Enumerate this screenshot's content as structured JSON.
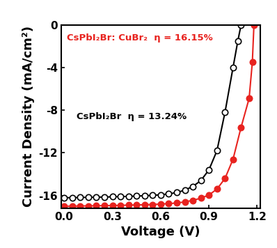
{
  "chart_data": {
    "type": "line",
    "x_label": "Voltage (V)",
    "y_label": "Current Density (mA/cm²)",
    "xlim": [
      -0.02,
      1.22
    ],
    "ylim": [
      -17.2,
      0
    ],
    "xticks": [
      0.0,
      0.3,
      0.6,
      0.9,
      1.2
    ],
    "yticks": [
      0,
      -4,
      -8,
      -12,
      -16
    ],
    "grid": false,
    "annotations": [
      {
        "text": "CsPbI₂Br: CuBr₂  η = 16.15%",
        "color": "#e8231f"
      },
      {
        "text": "CsPbI₂Br  η = 13.24%",
        "color": "#000000"
      }
    ],
    "series": [
      {
        "name": "CsPbI₂Br",
        "color": "#000000",
        "marker": "open_circle",
        "line_style": "solid",
        "x": [
          0.0,
          0.05,
          0.1,
          0.15,
          0.2,
          0.25,
          0.3,
          0.35,
          0.4,
          0.45,
          0.5,
          0.55,
          0.6,
          0.65,
          0.7,
          0.75,
          0.8,
          0.85,
          0.9,
          0.95,
          1.0,
          1.05,
          1.08,
          1.1
        ],
        "values": [
          -16.2,
          -16.2,
          -16.18,
          -16.17,
          -16.15,
          -16.14,
          -16.12,
          -16.1,
          -16.08,
          -16.05,
          -16.02,
          -15.98,
          -15.93,
          -15.85,
          -15.72,
          -15.5,
          -15.15,
          -14.6,
          -13.6,
          -11.8,
          -8.2,
          -4.0,
          -1.5,
          0.0
        ]
      },
      {
        "name": "CsPbI₂Br: CuBr₂",
        "color": "#e8231f",
        "marker": "circle",
        "line_style": "solid",
        "x": [
          0.0,
          0.05,
          0.1,
          0.15,
          0.2,
          0.25,
          0.3,
          0.35,
          0.4,
          0.45,
          0.5,
          0.55,
          0.6,
          0.65,
          0.7,
          0.75,
          0.8,
          0.85,
          0.9,
          0.95,
          1.0,
          1.05,
          1.1,
          1.15,
          1.17,
          1.18
        ],
        "values": [
          -17.0,
          -17.0,
          -16.98,
          -16.97,
          -16.96,
          -16.95,
          -16.94,
          -16.92,
          -16.9,
          -16.88,
          -16.86,
          -16.84,
          -16.8,
          -16.76,
          -16.7,
          -16.6,
          -16.45,
          -16.25,
          -15.95,
          -15.4,
          -14.4,
          -12.6,
          -9.6,
          -6.9,
          -3.5,
          0.0
        ]
      }
    ]
  }
}
